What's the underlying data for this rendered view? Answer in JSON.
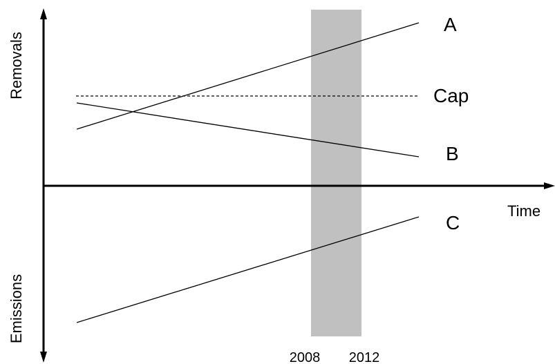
{
  "diagram": {
    "axes": {
      "y_top_label": "Removals",
      "y_bottom_label": "Emissions",
      "x_label": "Time"
    },
    "period": {
      "start_label": "2008",
      "end_label": "2012",
      "shade_color": "#c0c0c0"
    },
    "lines": {
      "a_label": "A",
      "b_label": "B",
      "c_label": "C",
      "cap_label": "Cap",
      "cap_style": "dashed"
    },
    "colors": {
      "line": "#000000",
      "background": "#ffffff"
    }
  }
}
